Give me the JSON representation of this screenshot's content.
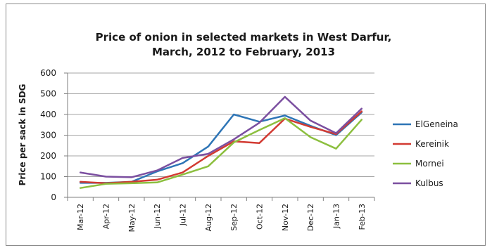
{
  "chart_data": {
    "type": "line",
    "title_lines": [
      "Price of onion  in selected markets in West Darfur,",
      "March, 2012 to February, 2013"
    ],
    "ylabel": "Price per sack in SDG",
    "xlabel": "",
    "ylim": [
      0,
      600
    ],
    "yticks": [
      0,
      100,
      200,
      300,
      400,
      500,
      600
    ],
    "grid": "horizontal",
    "legend_position": "right",
    "categories": [
      "Mar-12",
      "Apr-12",
      "May-12",
      "Jun-12",
      "Jul-12",
      "Aug-12",
      "Sep-12",
      "Oct-12",
      "Nov-12",
      "Dec-12",
      "Jan-13",
      "Feb-13"
    ],
    "series": [
      {
        "name": "ElGeneina",
        "color": "#2e75b6",
        "values": [
          70,
          70,
          75,
          125,
          165,
          245,
          400,
          365,
          395,
          345,
          300,
          410
        ]
      },
      {
        "name": "Kereinik",
        "color": "#d23a32",
        "values": [
          75,
          68,
          75,
          85,
          120,
          200,
          270,
          262,
          380,
          340,
          305,
          415
        ]
      },
      {
        "name": "Mornei",
        "color": "#8cbf3f",
        "values": [
          45,
          65,
          68,
          72,
          110,
          150,
          265,
          325,
          382,
          290,
          235,
          375
        ]
      },
      {
        "name": "Kulbus",
        "color": "#7b4fa0",
        "values": [
          120,
          100,
          97,
          130,
          190,
          210,
          280,
          360,
          485,
          370,
          310,
          428
        ]
      }
    ]
  }
}
